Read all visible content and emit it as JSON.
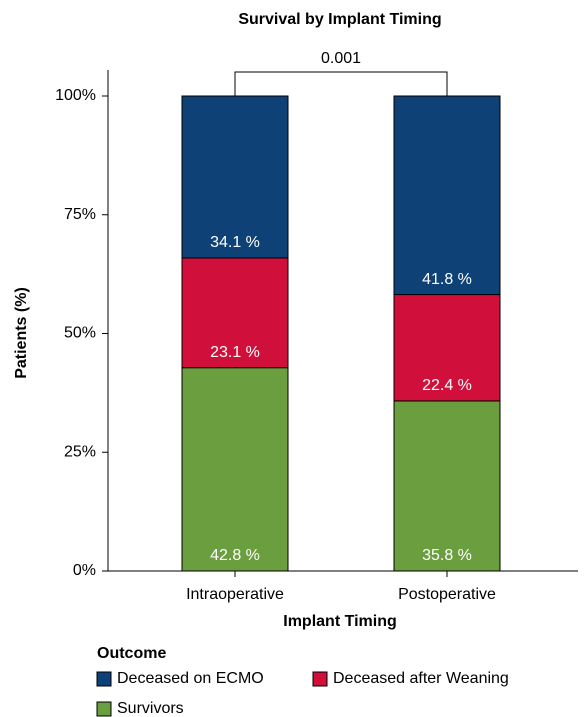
{
  "chart_data": {
    "type": "stacked_bar",
    "title": "Survival by Implant Timing",
    "x_label": "Implant Timing",
    "y_label": "Patients (%)",
    "categories": [
      "Intraoperative",
      "Postoperative"
    ],
    "series": [
      {
        "name": "Deceased on ECMO",
        "color": "#0e4176",
        "values": [
          34.1,
          41.8
        ],
        "value_labels": [
          "34.1 %",
          "41.8 %"
        ]
      },
      {
        "name": "Deceased after Weaning",
        "color": "#d0103a",
        "values": [
          23.1,
          22.4
        ],
        "value_labels": [
          "23.1 %",
          "22.4 %"
        ]
      },
      {
        "name": "Survivors",
        "color": "#6a9e3f",
        "values": [
          42.8,
          35.8
        ],
        "value_labels": [
          "42.8 %",
          "35.8 %"
        ]
      }
    ],
    "ylim": [
      0,
      100
    ],
    "yticks": [
      {
        "value": 0,
        "label": "0%"
      },
      {
        "value": 25,
        "label": "25%"
      },
      {
        "value": 50,
        "label": "50%"
      },
      {
        "value": 75,
        "label": "75%"
      },
      {
        "value": 100,
        "label": "100%"
      }
    ],
    "annotation": "0.001",
    "legend_title": "Outcome"
  }
}
